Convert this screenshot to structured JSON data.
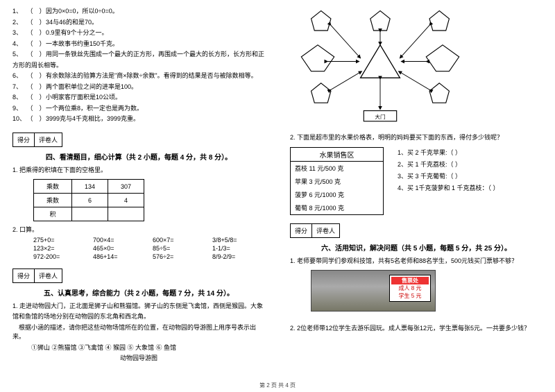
{
  "left": {
    "judgeItems": [
      "因为0×0=0，所以0÷0=0。",
      "34与46的和是70。",
      "0.9里有9个十分之一。",
      "一本故事书约重150千克。",
      "用同一条铁丝先围成一个最大的正方形，再围成一个最大的长方形，长方形和正",
      "有余数除法的验算方法是\"商×除数÷余数\"。看得到的结果是否与被除数相等。",
      "两个面积单位之间的进率是100。",
      "小明家客厅面积是10公顷。",
      "一个两位乘8，积一定也是两为数。",
      "3999克与4千克相比，3999克重。"
    ],
    "judgeSuffix": "方形的周长相等。",
    "score": {
      "a": "得分",
      "b": "评卷人"
    },
    "sec4": "四、看清题目，细心计算（共 2 小题，每题 4 分，共 8 分）。",
    "q4_1": "1. 把乘得的积填在下面的空格里。",
    "table": {
      "r1": [
        "乘数",
        "134",
        "307"
      ],
      "r2": [
        "乘数",
        "6",
        "4"
      ],
      "r3": [
        "积",
        "",
        ""
      ]
    },
    "q4_2": "2. 口算。",
    "calcRows": [
      [
        "275+0=",
        "700×4=",
        "600×7=",
        "3/8+5/8="
      ],
      [
        "123×2=",
        "465×0=",
        "85÷5=",
        "1-1/3="
      ],
      [
        "972-200=",
        "486+14=",
        "576÷2=",
        "8/9-2/9="
      ]
    ],
    "sec5": "五、认真思考，综合能力（共 2 小题，每题 7 分，共 14 分）。",
    "q5_1a": "1. 走进动物园大门，正北面是狮子山和熊猫馆。狮子山的东侧是飞禽馆，西侧是猴园。大象",
    "q5_1b": "馆和鱼馆的场地分别在动物园的东北角和西北角。",
    "q5_1c": "根据小涵的描述，请你把这些动物场馆所在的位置，在动物园的导游图上用序号表示出来。",
    "q5_1d": "①狮山  ②熊猫馆  ③飞禽馆  ④ 猴园  ⑤ 大象馆  ⑥ 鱼馆",
    "q5_1e": "动物园导游图"
  },
  "right": {
    "diagram": {
      "gate": "大门"
    },
    "q2": "2. 下面是超市里的水果价格表，明明的妈妈要买下面的东西，得付多少钱呢？",
    "fruitTitle": "水果销售区",
    "fruits": [
      "荔枝 11 元/500 克",
      "苹果 3 元/500 克",
      "菠萝 6 元/1000 克",
      "葡萄 8 元/1000 克"
    ],
    "fruitQs": [
      "1、买 2 千克苹果:（        ）",
      "2、买 1 千克荔枝:（        ）",
      "3、买 3 千克葡萄:（        ）",
      "4、买 1千克菠萝和 1 千克荔枝：（    ）"
    ],
    "score": {
      "a": "得分",
      "b": "评卷人"
    },
    "sec6": "六、活用知识，解决问题（共 5 小题，每题 5 分，共 25 分）。",
    "q6_1": "1. 老师要带同学们参观科技馆，共有5名老师和88名学生，500元钱买门票够不够？",
    "ticket": {
      "title": "售票处",
      "adult": "成人 8 元",
      "student": "学生 5 元"
    },
    "q6_2": "2. 2位老师带12位学生去游乐园玩。成人票每张12元，学生票每张5元。一共要多少钱？"
  },
  "footer": "第 2 页 共 4 页"
}
